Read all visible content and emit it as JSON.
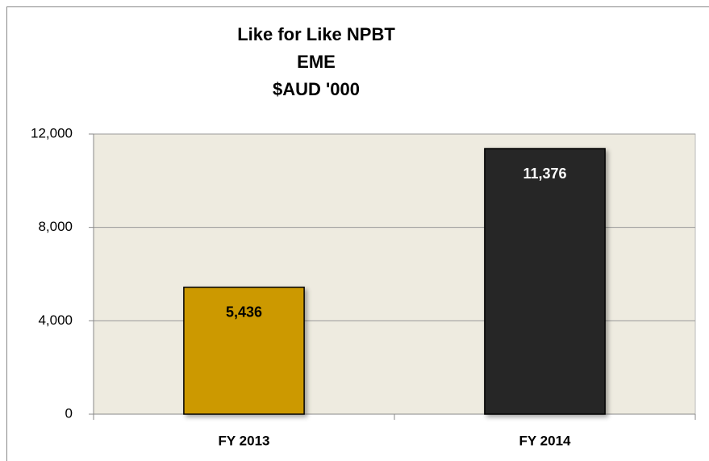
{
  "chart_data": {
    "type": "bar",
    "title": [
      "Like for Like NPBT",
      "EME",
      "$AUD '000"
    ],
    "categories": [
      "FY 2013",
      "FY 2014"
    ],
    "values": [
      5436,
      11376
    ],
    "value_labels": [
      "5,436",
      "11,376"
    ],
    "colors": [
      "#cc9900",
      "#262626"
    ],
    "ylim": [
      0,
      12000
    ],
    "yticks": [
      0,
      {
        "value": 4000,
        "label": "4,000"
      },
      {
        "value": 8000,
        "label": "8,000"
      },
      {
        "value": 12000,
        "label": "12,000"
      }
    ],
    "grid": true
  }
}
